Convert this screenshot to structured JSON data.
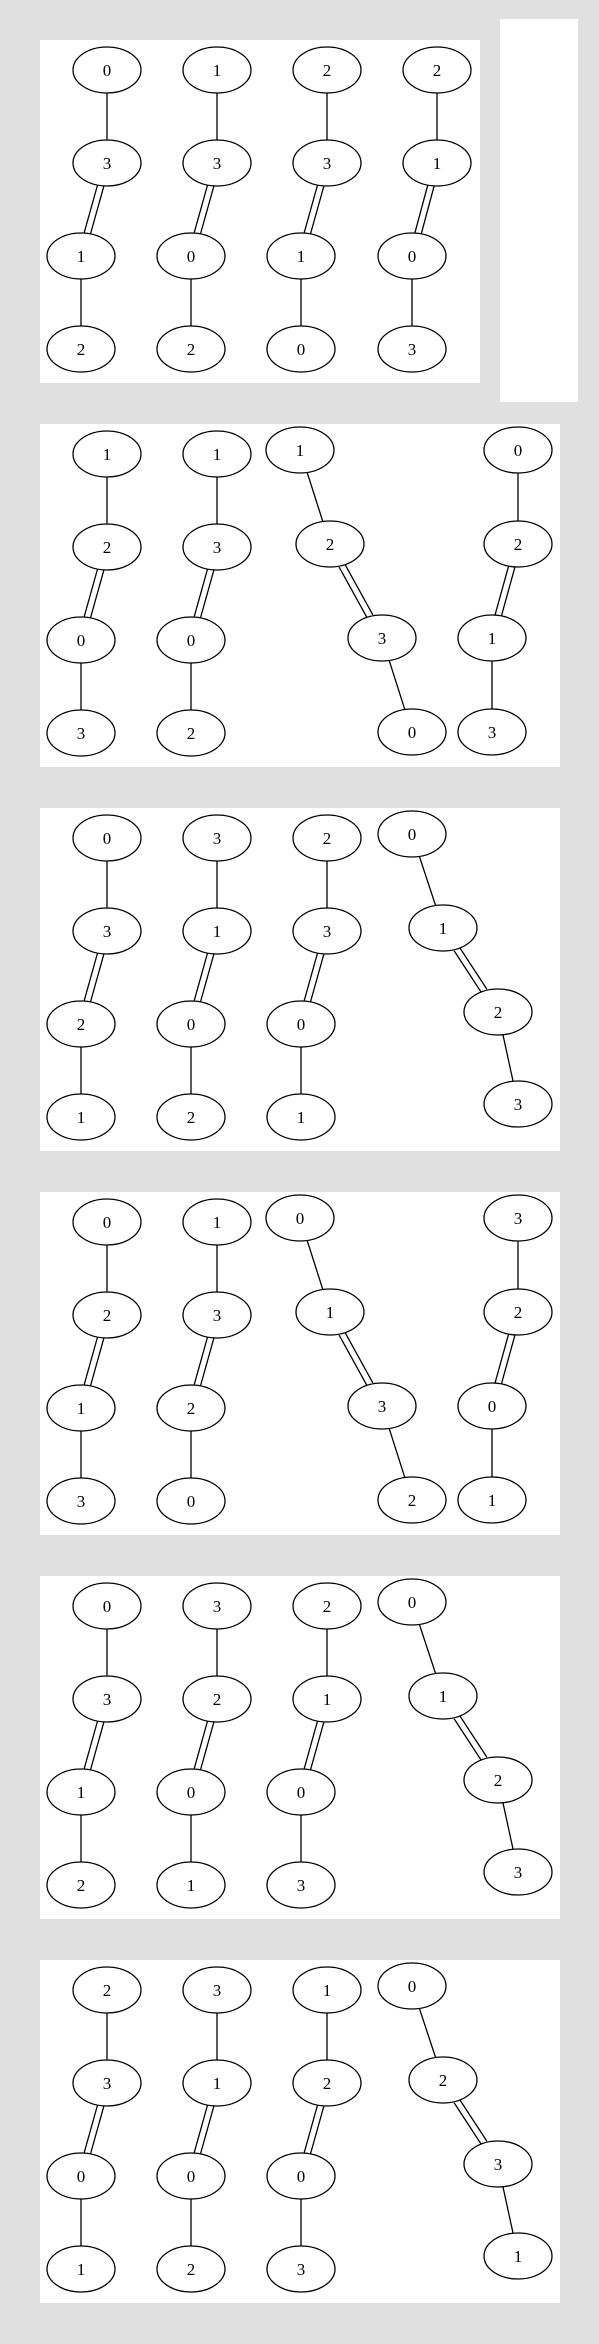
{
  "panels": [
    {
      "id": "panel-1",
      "graphs": [
        {
          "nodes": [
            "0",
            "3",
            "1",
            "2"
          ],
          "edges": [
            "single",
            "double",
            "single"
          ]
        },
        {
          "nodes": [
            "1",
            "3",
            "0",
            "2"
          ],
          "edges": [
            "single",
            "double",
            "single"
          ]
        },
        {
          "nodes": [
            "2",
            "3",
            "1",
            "0"
          ],
          "edges": [
            "single",
            "double",
            "single"
          ]
        },
        {
          "nodes": [
            "2",
            "1",
            "0",
            "3"
          ],
          "edges": [
            "single",
            "double",
            "single"
          ]
        }
      ]
    },
    {
      "id": "panel-2",
      "graphs": [
        {
          "nodes": [
            "1",
            "2",
            "0",
            "3"
          ],
          "edges": [
            "single",
            "double",
            "single"
          ]
        },
        {
          "nodes": [
            "1",
            "3",
            "0",
            "2"
          ],
          "edges": [
            "single",
            "double",
            "single"
          ]
        },
        {
          "nodes": [
            "1",
            "2",
            "3",
            "0"
          ],
          "edges": [
            "single",
            "double",
            "single"
          ]
        },
        {
          "nodes": [
            "0",
            "2",
            "1",
            "3"
          ],
          "edges": [
            "single",
            "double",
            "single"
          ]
        }
      ]
    },
    {
      "id": "panel-3",
      "graphs": [
        {
          "nodes": [
            "0",
            "3",
            "2",
            "1"
          ],
          "edges": [
            "single",
            "double",
            "single"
          ]
        },
        {
          "nodes": [
            "3",
            "1",
            "0",
            "2"
          ],
          "edges": [
            "single",
            "double",
            "single"
          ]
        },
        {
          "nodes": [
            "2",
            "3",
            "0",
            "1"
          ],
          "edges": [
            "single",
            "double",
            "single"
          ]
        },
        {
          "nodes": [
            "0",
            "1",
            "2",
            "3"
          ],
          "edges": [
            "single",
            "double",
            "single"
          ]
        }
      ]
    },
    {
      "id": "panel-4",
      "graphs": [
        {
          "nodes": [
            "0",
            "2",
            "1",
            "3"
          ],
          "edges": [
            "single",
            "double",
            "single"
          ]
        },
        {
          "nodes": [
            "1",
            "3",
            "2",
            "0"
          ],
          "edges": [
            "single",
            "double",
            "single"
          ]
        },
        {
          "nodes": [
            "0",
            "1",
            "3",
            "2"
          ],
          "edges": [
            "single",
            "double",
            "single"
          ]
        },
        {
          "nodes": [
            "3",
            "2",
            "0",
            "1"
          ],
          "edges": [
            "single",
            "double",
            "single"
          ]
        }
      ]
    },
    {
      "id": "panel-5",
      "graphs": [
        {
          "nodes": [
            "0",
            "3",
            "1",
            "2"
          ],
          "edges": [
            "single",
            "double",
            "single"
          ]
        },
        {
          "nodes": [
            "3",
            "2",
            "0",
            "1"
          ],
          "edges": [
            "single",
            "double",
            "single"
          ]
        },
        {
          "nodes": [
            "2",
            "1",
            "0",
            "3"
          ],
          "edges": [
            "single",
            "double",
            "single"
          ]
        },
        {
          "nodes": [
            "0",
            "1",
            "2",
            "3"
          ],
          "edges": [
            "single",
            "double",
            "single"
          ]
        }
      ]
    },
    {
      "id": "panel-6",
      "graphs": [
        {
          "nodes": [
            "2",
            "3",
            "0",
            "1"
          ],
          "edges": [
            "single",
            "double",
            "single"
          ]
        },
        {
          "nodes": [
            "3",
            "1",
            "0",
            "2"
          ],
          "edges": [
            "single",
            "double",
            "single"
          ]
        },
        {
          "nodes": [
            "1",
            "2",
            "0",
            "3"
          ],
          "edges": [
            "single",
            "double",
            "single"
          ]
        },
        {
          "nodes": [
            "0",
            "2",
            "3",
            "1"
          ],
          "edges": [
            "single",
            "double",
            "single"
          ]
        }
      ]
    }
  ]
}
